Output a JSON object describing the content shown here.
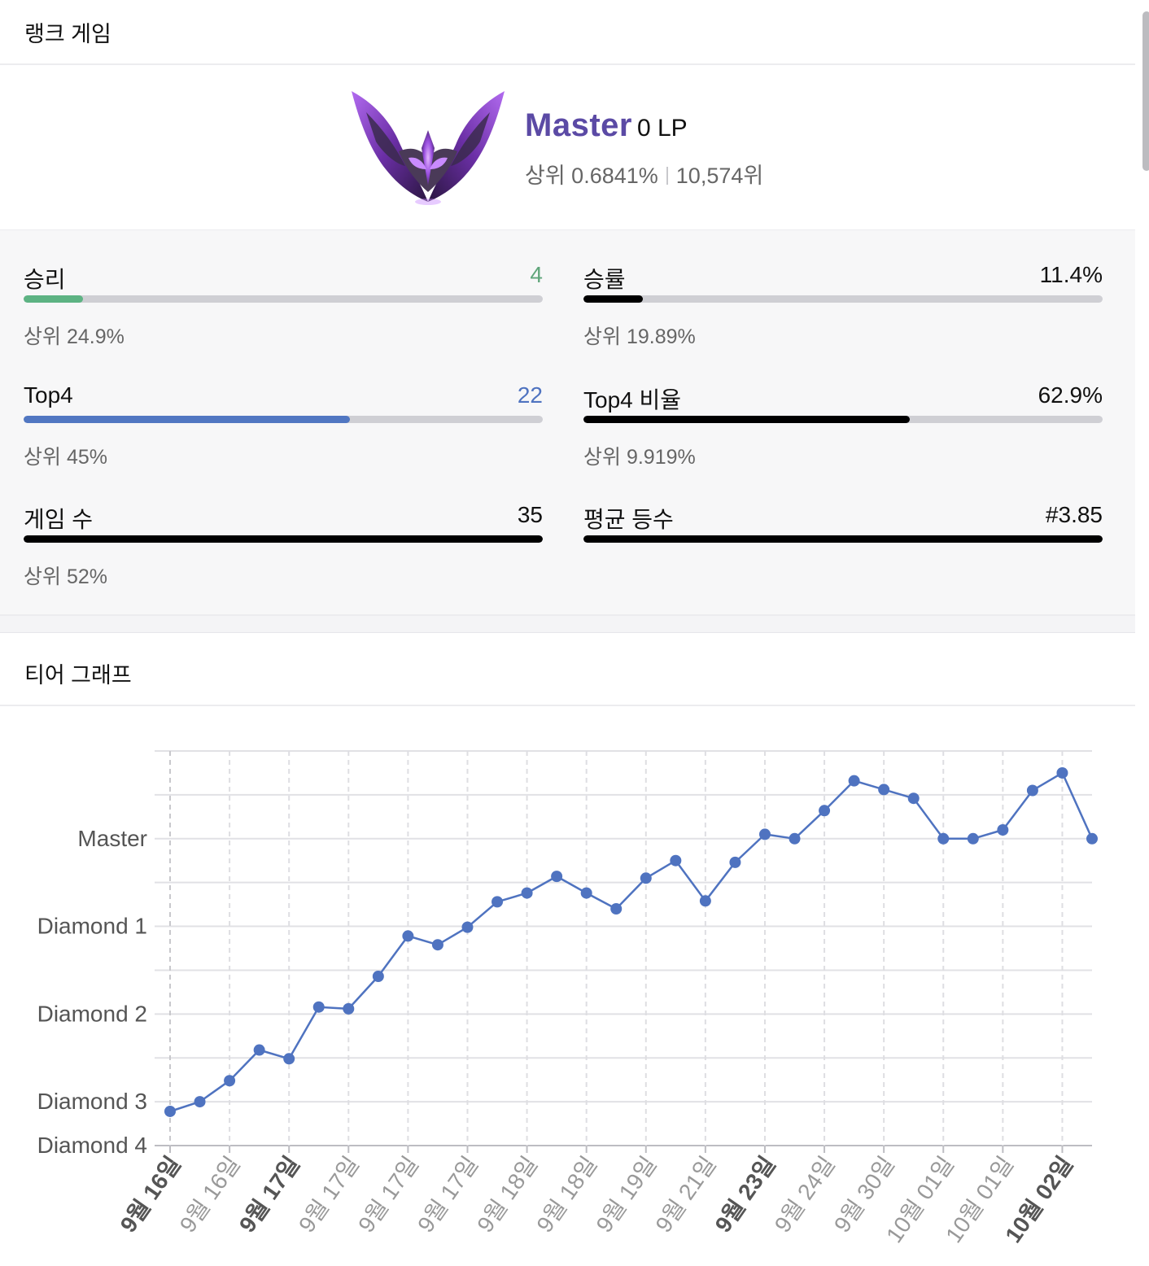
{
  "rank_section": {
    "title": "랭크 게임"
  },
  "rank": {
    "tier": "Master",
    "lp": "0 LP",
    "percentile": "상위 0.6841%",
    "position": "10,574위",
    "emblem_icon": "master-emblem-icon",
    "tier_color": "#5b4aa5"
  },
  "stats": [
    {
      "key": "wins",
      "label": "승리",
      "value": "4",
      "value_color": "#5fa57a",
      "fill": 0.115,
      "fill_color": "#5db383",
      "sub": "상위 24.9%"
    },
    {
      "key": "winrate",
      "label": "승률",
      "value": "11.4%",
      "value_color": "#111111",
      "fill": 0.114,
      "fill_color": "#000000",
      "sub": "상위 19.89%"
    },
    {
      "key": "top4",
      "label": "Top4",
      "value": "22",
      "value_color": "#4f73c0",
      "fill": 0.629,
      "fill_color": "#5177c2",
      "sub": "상위 45%"
    },
    {
      "key": "top4rate",
      "label": "Top4 비율",
      "value": "62.9%",
      "value_color": "#111111",
      "fill": 0.629,
      "fill_color": "#000000",
      "sub": "상위 9.919%"
    },
    {
      "key": "games",
      "label": "게임 수",
      "value": "35",
      "value_color": "#111111",
      "fill": 1.0,
      "fill_color": "#000000",
      "sub": "상위 52%"
    },
    {
      "key": "avgplace",
      "label": "평균 등수",
      "value": "#3.85",
      "value_color": "#111111",
      "fill": 1.0,
      "fill_color": "#000000",
      "sub": ""
    }
  ],
  "graph_section": {
    "title": "티어 그래프"
  },
  "chart_data": {
    "type": "line",
    "title": "",
    "xlabel": "",
    "ylabel": "",
    "series_color": "#4f73c0",
    "y_ticks": [
      {
        "label": "Master",
        "value": 400
      },
      {
        "label": "Diamond 1",
        "value": 300
      },
      {
        "label": "Diamond 2",
        "value": 200
      },
      {
        "label": "Diamond 3",
        "value": 100
      },
      {
        "label": "Diamond 4",
        "value": 50
      }
    ],
    "ylim": [
      50,
      500
    ],
    "x_ticks": [
      {
        "label": "9월 16일",
        "index": 0,
        "bold": true
      },
      {
        "label": "9월 16일",
        "index": 2,
        "bold": false
      },
      {
        "label": "9월 17일",
        "index": 4,
        "bold": true
      },
      {
        "label": "9월 17일",
        "index": 6,
        "bold": false
      },
      {
        "label": "9월 17일",
        "index": 8,
        "bold": false
      },
      {
        "label": "9월 17일",
        "index": 10,
        "bold": false
      },
      {
        "label": "9월 18일",
        "index": 12,
        "bold": false
      },
      {
        "label": "9월 18일",
        "index": 14,
        "bold": false
      },
      {
        "label": "9월 19일",
        "index": 16,
        "bold": false
      },
      {
        "label": "9월 21일",
        "index": 18,
        "bold": false
      },
      {
        "label": "9월 23일",
        "index": 20,
        "bold": true
      },
      {
        "label": "9월 24일",
        "index": 22,
        "bold": false
      },
      {
        "label": "9월 30일",
        "index": 24,
        "bold": false
      },
      {
        "label": "10월 01일",
        "index": 26,
        "bold": false
      },
      {
        "label": "10월 01일",
        "index": 28,
        "bold": false
      },
      {
        "label": "10월 02일",
        "index": 30,
        "bold": true
      }
    ],
    "values": [
      89,
      100,
      124,
      159,
      149,
      208,
      206,
      243,
      289,
      279,
      299,
      328,
      338,
      357,
      338,
      320,
      355,
      375,
      329,
      373,
      405,
      400,
      432,
      466,
      456,
      446,
      400,
      400,
      410,
      455,
      475,
      400
    ],
    "grid": true
  }
}
